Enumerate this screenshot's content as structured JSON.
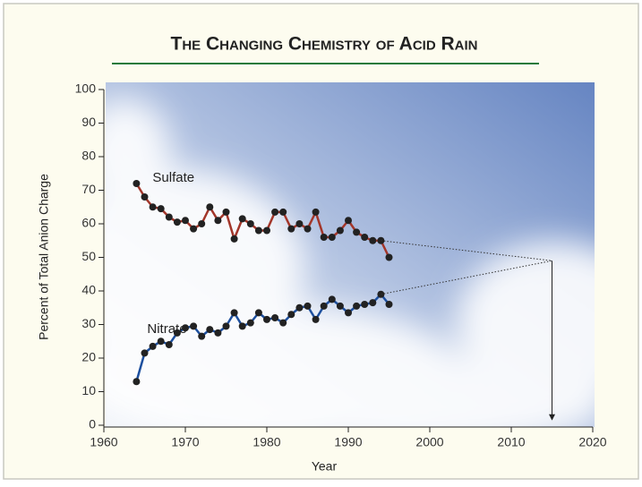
{
  "chart_data": {
    "type": "line",
    "title": "The Changing Chemistry of Acid Rain",
    "x_label": "Year",
    "y_label": "Percent of Total Anion Charge",
    "x": [
      1964,
      1965,
      1966,
      1967,
      1968,
      1969,
      1970,
      1971,
      1972,
      1973,
      1974,
      1975,
      1976,
      1977,
      1978,
      1979,
      1980,
      1981,
      1982,
      1983,
      1984,
      1985,
      1986,
      1987,
      1988,
      1989,
      1990,
      1991,
      1992,
      1993,
      1994,
      1995
    ],
    "series": [
      {
        "name": "Sulfate",
        "color": "#a3362a",
        "values": [
          72,
          68,
          65,
          64.5,
          62,
          60.5,
          61,
          58.5,
          60,
          65,
          61,
          63.5,
          55.5,
          61.5,
          60,
          58,
          58,
          63.5,
          63.5,
          58.5,
          60,
          58.5,
          63.5,
          56,
          56,
          58,
          61,
          57.5,
          56,
          55,
          55,
          50
        ]
      },
      {
        "name": "Nitrate",
        "color": "#1d4f9e",
        "values": [
          13,
          21.5,
          23.5,
          25,
          24,
          27.5,
          29,
          29.5,
          26.5,
          28.5,
          27.5,
          29.5,
          33.5,
          29.5,
          30.5,
          33.5,
          31.5,
          32,
          30.5,
          33,
          35,
          35.5,
          31.5,
          35.5,
          37.5,
          35.5,
          33.5,
          35.5,
          36,
          36.5,
          39,
          36
        ]
      }
    ],
    "projection": {
      "x": 2015,
      "y": 49
    },
    "xlim": [
      1960,
      2020
    ],
    "xticks": [
      1960,
      1970,
      1980,
      1990,
      2000,
      2010,
      2020
    ],
    "ylim": [
      0,
      100
    ],
    "yticks": [
      0,
      10,
      20,
      30,
      40,
      50,
      60,
      70,
      80,
      90,
      100
    ],
    "marker_color": "#222222",
    "title_color": "#1e7a3c"
  }
}
